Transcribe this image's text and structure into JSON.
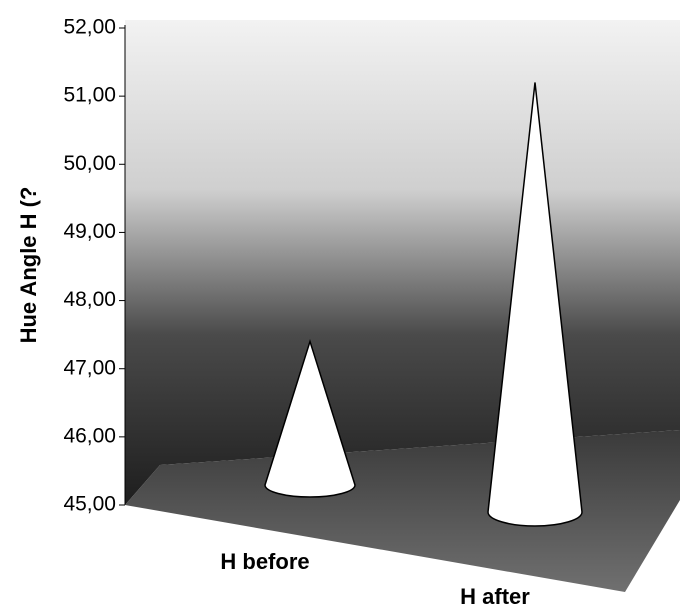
{
  "chart_data": {
    "type": "cone",
    "y_label": "Hue Angle H (?",
    "categories": [
      "H before",
      "H after"
    ],
    "values": [
      47.4,
      51.2
    ],
    "color": "#ffffff",
    "ylim": [
      45,
      52
    ],
    "yticks": [
      {
        "value": 45,
        "label": "45,00"
      },
      {
        "value": 46,
        "label": "46,00"
      },
      {
        "value": 47,
        "label": "47,00"
      },
      {
        "value": 48,
        "label": "48,00"
      },
      {
        "value": 49,
        "label": "49,00"
      },
      {
        "value": 50,
        "label": "50,00"
      },
      {
        "value": 51,
        "label": "51,00"
      },
      {
        "value": 52,
        "label": "52,00"
      }
    ]
  }
}
